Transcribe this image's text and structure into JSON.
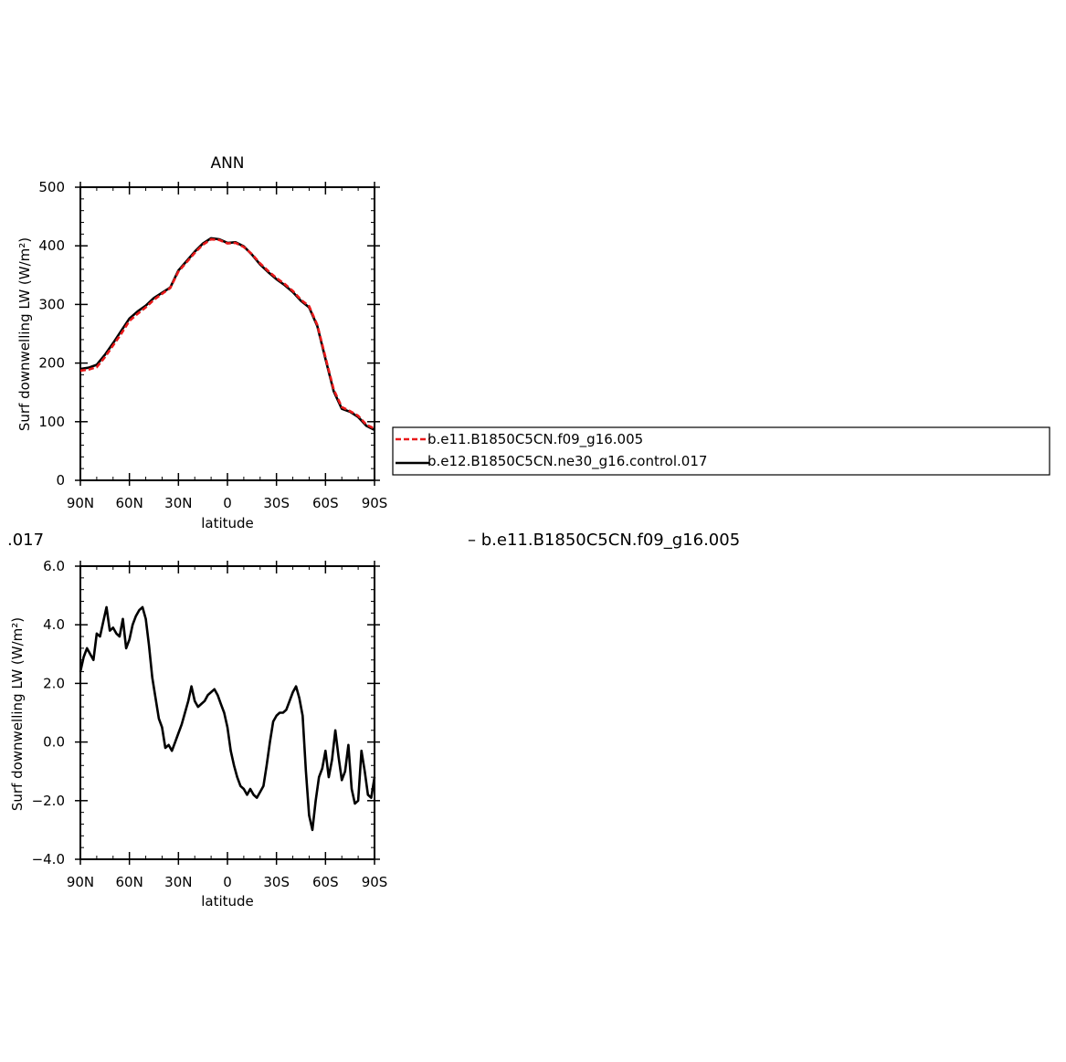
{
  "chart_data": [
    {
      "type": "line",
      "title": "ANN",
      "xlabel": "latitude",
      "ylabel": "Surf downwelling LW (W/m²)",
      "xlim": [
        -90,
        90
      ],
      "ylim": [
        0,
        500
      ],
      "xticks": [
        -90,
        -60,
        -30,
        0,
        30,
        60,
        90
      ],
      "xtick_labels": [
        "90N",
        "60N",
        "30N",
        "0",
        "30S",
        "60S",
        "90S"
      ],
      "yticks": [
        0,
        100,
        200,
        300,
        400,
        500
      ],
      "ytick_labels": [
        "0",
        "100",
        "200",
        "300",
        "400",
        "500"
      ],
      "grid": false,
      "legend": "right",
      "series": [
        {
          "name": "b.e11.B1850C5CN.f09_g16.005",
          "color": "#e8191a",
          "dash": "dashed",
          "x": [
            -90,
            -85,
            -80,
            -75,
            -70,
            -65,
            -60,
            -55,
            -50,
            -45,
            -40,
            -35,
            -30,
            -25,
            -20,
            -15,
            -10,
            -5,
            0,
            5,
            10,
            15,
            20,
            25,
            30,
            35,
            40,
            45,
            50,
            55,
            60,
            65,
            70,
            75,
            80,
            85,
            90
          ],
          "values": [
            187,
            189,
            193,
            210,
            230,
            250,
            272,
            284,
            295,
            308,
            318,
            328,
            356,
            372,
            388,
            402,
            411,
            410,
            404,
            405,
            398,
            386,
            370,
            357,
            345,
            335,
            323,
            308,
            297,
            265,
            210,
            155,
            125,
            118,
            110,
            95,
            88
          ]
        },
        {
          "name": "b.e12.B1850C5CN.ne30_g16.control.017",
          "color": "#000000",
          "dash": "solid",
          "x": [
            -90,
            -85,
            -80,
            -75,
            -70,
            -65,
            -60,
            -55,
            -50,
            -45,
            -40,
            -35,
            -30,
            -25,
            -20,
            -15,
            -10,
            -5,
            0,
            5,
            10,
            15,
            20,
            25,
            30,
            35,
            40,
            45,
            50,
            55,
            60,
            65,
            70,
            75,
            80,
            85,
            90
          ],
          "values": [
            190,
            192,
            197,
            214,
            234,
            255,
            276,
            288,
            298,
            311,
            320,
            329,
            358,
            374,
            390,
            404,
            413,
            411,
            405,
            406,
            399,
            385,
            368,
            355,
            343,
            333,
            321,
            306,
            295,
            263,
            207,
            152,
            122,
            117,
            108,
            93,
            86
          ]
        }
      ],
      "legend_entries": [
        "b.e11.B1850C5CN.f09_g16.005",
        "b.e12.B1850C5CN.ne30_g16.control.017"
      ]
    },
    {
      "type": "line",
      "title_left_fragment": ".017",
      "title_right_fragment": "– b.e11.B1850C5CN.f09_g16.005",
      "xlabel": "latitude",
      "ylabel": "Surf downwelling LW (W/m²)",
      "xlim": [
        -90,
        90
      ],
      "ylim": [
        -4,
        6
      ],
      "xticks": [
        -90,
        -60,
        -30,
        0,
        30,
        60,
        90
      ],
      "xtick_labels": [
        "90N",
        "60N",
        "30N",
        "0",
        "30S",
        "60S",
        "90S"
      ],
      "yticks": [
        -4,
        -2,
        0,
        2,
        4,
        6
      ],
      "ytick_labels": [
        "−4.0",
        "−2.0",
        "0.0",
        "2.0",
        "4.0",
        "6.0"
      ],
      "grid": false,
      "series": [
        {
          "color": "#000000",
          "x": [
            -90,
            -88,
            -86,
            -84,
            -82,
            -80,
            -78,
            -76,
            -74,
            -72,
            -70,
            -68,
            -66,
            -64,
            -62,
            -60,
            -58,
            -56,
            -54,
            -52,
            -50,
            -48,
            -46,
            -44,
            -42,
            -40,
            -38,
            -36,
            -34,
            -32,
            -30,
            -28,
            -26,
            -24,
            -22,
            -20,
            -18,
            -16,
            -14,
            -12,
            -10,
            -8,
            -6,
            -4,
            -2,
            0,
            2,
            4,
            6,
            8,
            10,
            12,
            14,
            16,
            18,
            20,
            22,
            24,
            26,
            28,
            30,
            32,
            34,
            36,
            38,
            40,
            42,
            44,
            46,
            48,
            50,
            52,
            54,
            56,
            58,
            60,
            62,
            64,
            66,
            68,
            70,
            72,
            74,
            76,
            78,
            80,
            82,
            84,
            86,
            88,
            90
          ],
          "values": [
            2.4,
            2.9,
            3.2,
            3.0,
            2.8,
            3.7,
            3.6,
            4.1,
            4.6,
            3.8,
            3.9,
            3.7,
            3.6,
            4.2,
            3.2,
            3.5,
            4.0,
            4.3,
            4.5,
            4.6,
            4.2,
            3.3,
            2.2,
            1.5,
            0.8,
            0.5,
            -0.2,
            -0.1,
            -0.3,
            0.0,
            0.3,
            0.6,
            1.0,
            1.4,
            1.9,
            1.4,
            1.2,
            1.3,
            1.4,
            1.6,
            1.7,
            1.8,
            1.6,
            1.3,
            1.0,
            0.5,
            -0.3,
            -0.8,
            -1.2,
            -1.5,
            -1.6,
            -1.8,
            -1.6,
            -1.8,
            -1.9,
            -1.7,
            -1.5,
            -0.8,
            0.0,
            0.7,
            0.9,
            1.0,
            1.0,
            1.1,
            1.4,
            1.7,
            1.9,
            1.5,
            0.9,
            -1.0,
            -2.5,
            -3.0,
            -2.0,
            -1.2,
            -0.9,
            -0.3,
            -1.2,
            -0.6,
            0.4,
            -0.5,
            -1.3,
            -1.0,
            -0.1,
            -1.6,
            -2.1,
            -2.0,
            -0.3,
            -1.0,
            -1.8,
            -1.9,
            -1.2
          ]
        }
      ]
    }
  ]
}
